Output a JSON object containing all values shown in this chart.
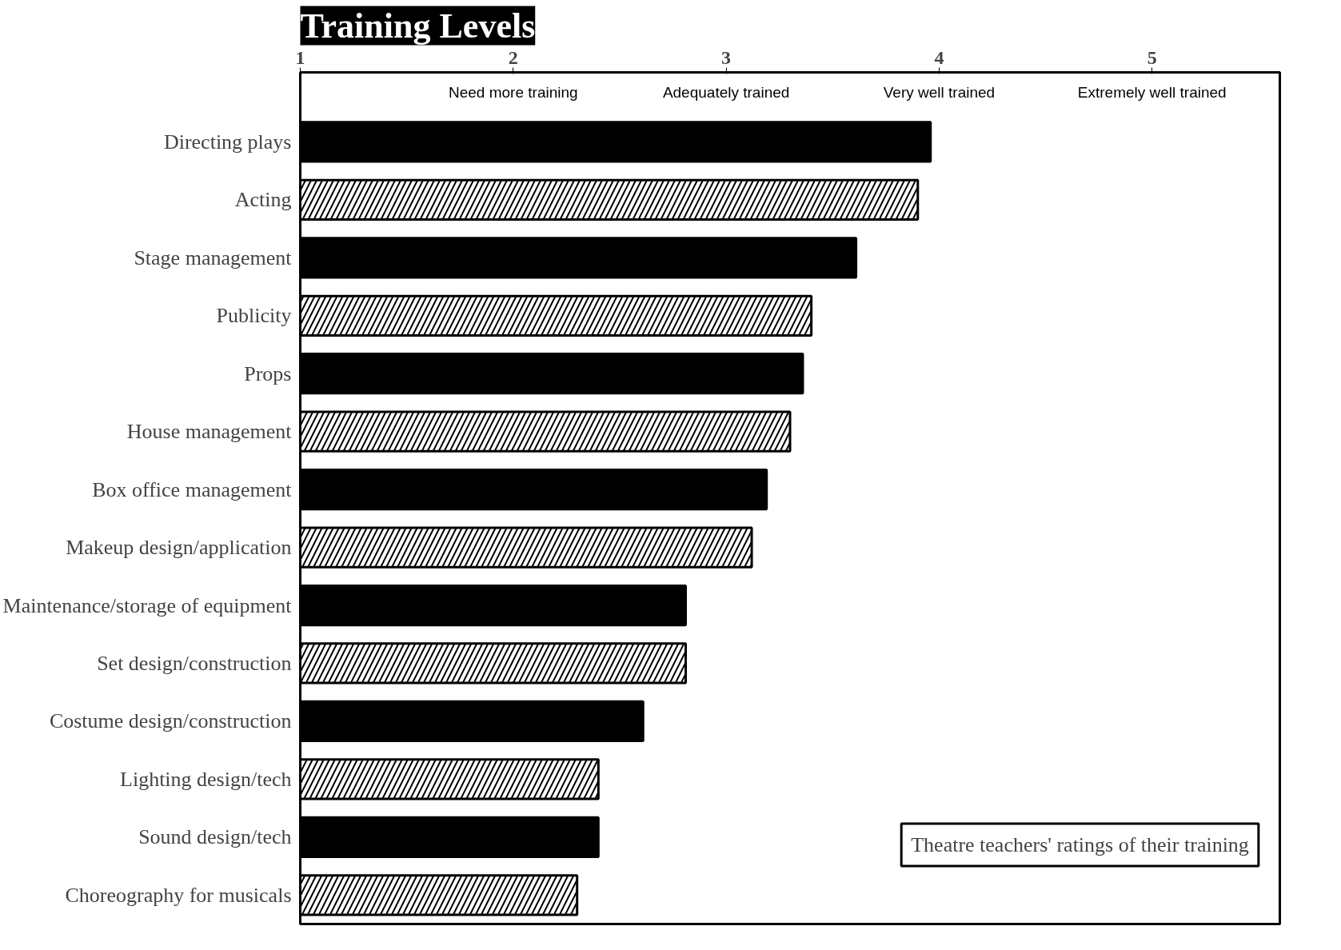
{
  "chart_data": {
    "type": "bar",
    "orientation": "horizontal",
    "title": "Training Levels",
    "annotations": [
      "Theatre teachers' ratings of their training",
      "Need more training",
      "Adequately trained",
      "Very well trained",
      "Extremely well trained"
    ],
    "categories": [
      "Directing plays",
      "Acting",
      "Stage management",
      "Publicity",
      "Props",
      "House management",
      "Box office management",
      "Makeup design/application",
      "Maintenance/storage of equipment",
      "Set design/construction",
      "Costume design/construction",
      "Lighting design/tech",
      "Sound design/tech",
      "Choreography for musicals"
    ],
    "values": [
      3.96,
      3.9,
      3.61,
      3.4,
      3.36,
      3.3,
      3.19,
      3.12,
      2.81,
      2.81,
      2.61,
      2.4,
      2.4,
      2.3
    ],
    "colors": [
      "#000000",
      "#ffffff",
      "#000000",
      "#ffffff",
      "#000000",
      "#ffffff",
      "#000000",
      "#ffffff",
      "#000000",
      "#ffffff",
      "#000000",
      "#ffffff",
      "#000000",
      "#ffffff"
    ],
    "xlim": [
      1,
      5.6
    ],
    "xticks": [
      1,
      2,
      3,
      4,
      5
    ],
    "grid": false
  }
}
